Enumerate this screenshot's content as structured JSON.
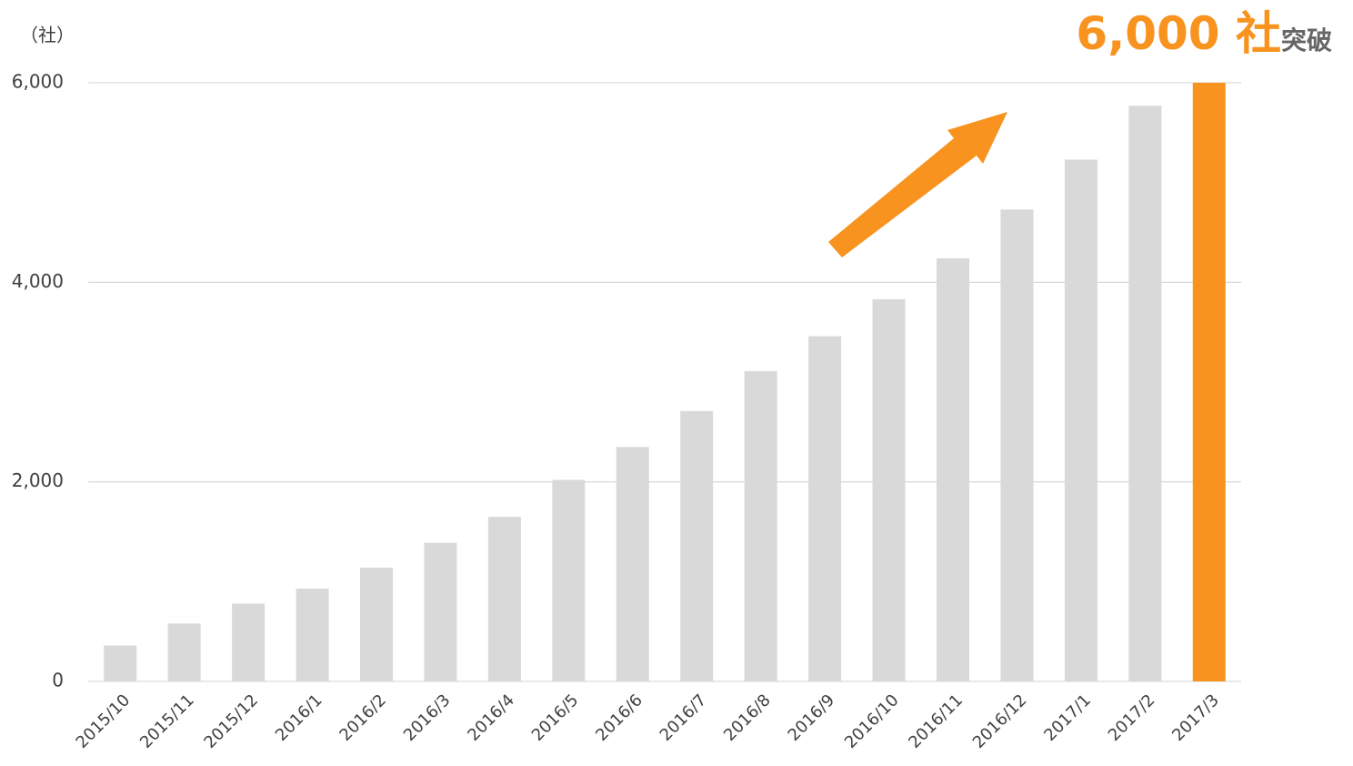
{
  "chart_data": {
    "type": "bar",
    "unit_label": "（社）",
    "annotation": "6,000 社",
    "annotation_suffix": "突破",
    "categories": [
      "2015/10",
      "2015/11",
      "2015/12",
      "2016/1",
      "2016/2",
      "2016/3",
      "2016/4",
      "2016/5",
      "2016/6",
      "2016/7",
      "2016/8",
      "2016/9",
      "2016/10",
      "2016/11",
      "2016/12",
      "2017/1",
      "2017/2",
      "2017/3"
    ],
    "values": [
      360,
      580,
      780,
      930,
      1140,
      1390,
      1650,
      2020,
      2350,
      2710,
      3110,
      3460,
      3830,
      4240,
      4730,
      5230,
      5770,
      6000
    ],
    "colors": [
      "#d9d9d9",
      "#d9d9d9",
      "#d9d9d9",
      "#d9d9d9",
      "#d9d9d9",
      "#d9d9d9",
      "#d9d9d9",
      "#d9d9d9",
      "#d9d9d9",
      "#d9d9d9",
      "#d9d9d9",
      "#d9d9d9",
      "#d9d9d9",
      "#d9d9d9",
      "#d9d9d9",
      "#d9d9d9",
      "#d9d9d9",
      "#f7931e"
    ],
    "ylim": [
      0,
      6000
    ],
    "yticks": [
      0,
      {
        "value": 2000,
        "label": "2,000"
      },
      {
        "value": 4000,
        "label": "4,000"
      },
      {
        "value": 6000,
        "label": "6,000"
      }
    ],
    "grid": true
  }
}
